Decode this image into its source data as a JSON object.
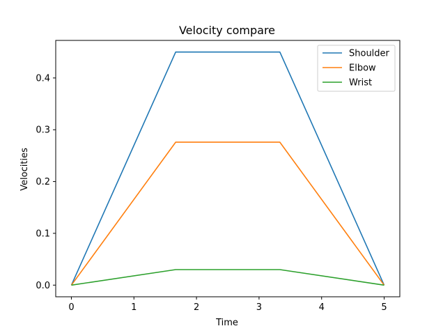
{
  "chart_data": {
    "type": "line",
    "title": "Velocity compare",
    "xlabel": "Time",
    "ylabel": "Velocities",
    "xlim": [
      -0.25,
      5.25
    ],
    "ylim": [
      -0.0225,
      0.4725
    ],
    "xticks": [
      0,
      1,
      2,
      3,
      4,
      5
    ],
    "yticks": [
      0.0,
      0.1,
      0.2,
      0.3,
      0.4
    ],
    "xtick_labels": [
      "0",
      "1",
      "2",
      "3",
      "4",
      "5"
    ],
    "ytick_labels": [
      "0.0",
      "0.1",
      "0.2",
      "0.3",
      "0.4"
    ],
    "grid": false,
    "legend_position": "upper right",
    "x": [
      0,
      1.667,
      3.333,
      5
    ],
    "series": [
      {
        "name": "Shoulder",
        "color": "#1f77b4",
        "values": [
          0,
          0.45,
          0.45,
          0
        ]
      },
      {
        "name": "Elbow",
        "color": "#ff7f0e",
        "values": [
          0,
          0.276,
          0.276,
          0
        ]
      },
      {
        "name": "Wrist",
        "color": "#2ca02c",
        "values": [
          0,
          0.03,
          0.03,
          0
        ]
      }
    ]
  }
}
